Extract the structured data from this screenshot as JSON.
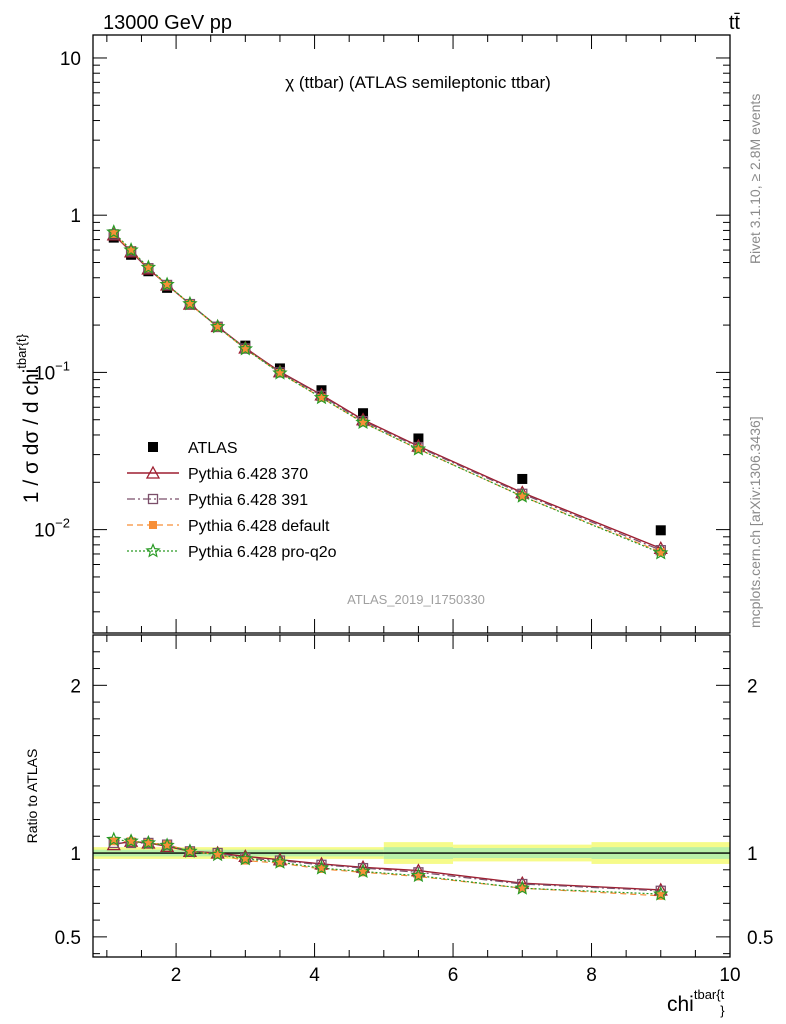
{
  "header": {
    "left": "13000 GeV pp",
    "right": "tt̄"
  },
  "side_labels": {
    "rivet": "Rivet 3.1.10, ≥ 2.8M events",
    "url": "mcplots.cern.ch [arXiv:1306.3436]"
  },
  "chart_data": [
    {
      "type": "scatter",
      "title": "χ (ttbar) (ATLAS semileptonic ttbar)",
      "watermark": "ATLAS_2019_I1750330",
      "ylabel": "1 / σ dσ / d chi",
      "ylabel_sup": "tbar{t}",
      "yscale": "log",
      "ylim": [
        0.0022,
        14
      ],
      "xlim": [
        0.8,
        10
      ],
      "y_ticks": [
        {
          "v": 10,
          "label": "10"
        },
        {
          "v": 1,
          "label": "1"
        },
        {
          "v": 0.1,
          "label": "10",
          "sup": "−1"
        },
        {
          "v": 0.01,
          "label": "10",
          "sup": "−2"
        }
      ],
      "x": [
        1.1,
        1.35,
        1.6,
        1.87,
        2.2,
        2.6,
        3.0,
        3.5,
        4.1,
        4.7,
        5.5,
        7.0,
        9.0
      ],
      "series": [
        {
          "name": "ATLAS",
          "marker": "square",
          "color": "#000000",
          "values": [
            0.72,
            0.56,
            0.44,
            0.345,
            0.27,
            0.195,
            0.148,
            0.106,
            0.077,
            0.055,
            0.038,
            0.021,
            0.0099
          ]
        },
        {
          "name": "Pythia 6.428 370",
          "marker": "triangle",
          "color": "#9e1f31",
          "line": "solid",
          "values": [
            0.75,
            0.585,
            0.455,
            0.36,
            0.272,
            0.196,
            0.143,
            0.101,
            0.072,
            0.05,
            0.034,
            0.0172,
            0.0076
          ]
        },
        {
          "name": "Pythia 6.428 391",
          "marker": "square-open",
          "color": "#7b4f6a",
          "line": "dashdot",
          "values": [
            0.755,
            0.59,
            0.46,
            0.36,
            0.272,
            0.195,
            0.142,
            0.1,
            0.071,
            0.049,
            0.0335,
            0.0169,
            0.0074
          ]
        },
        {
          "name": "Pythia 6.428 default",
          "marker": "square-filled",
          "color": "#f78f37",
          "line": "dashed",
          "values": [
            0.76,
            0.595,
            0.46,
            0.36,
            0.272,
            0.194,
            0.141,
            0.099,
            0.069,
            0.048,
            0.0325,
            0.0163,
            0.0072
          ]
        },
        {
          "name": "Pythia 6.428 pro-q2o",
          "marker": "star",
          "color": "#2a9b25",
          "line": "dotted",
          "values": [
            0.78,
            0.6,
            0.465,
            0.362,
            0.273,
            0.195,
            0.141,
            0.099,
            0.069,
            0.048,
            0.0325,
            0.0163,
            0.0071
          ]
        }
      ]
    },
    {
      "type": "line",
      "ylabel": "Ratio to ATLAS",
      "xlabel": "chi",
      "xlabel_sup": "tbar{t",
      "xlabel_sub": "}",
      "ylim": [
        0.38,
        2.3
      ],
      "xlim": [
        0.8,
        10
      ],
      "x_ticks": [
        2,
        4,
        6,
        8,
        10
      ],
      "y_ticks": [
        {
          "v": 2,
          "label": "2"
        },
        {
          "v": 1,
          "label": "1"
        },
        {
          "v": 0.5,
          "label": "0.5"
        }
      ],
      "x": [
        1.1,
        1.35,
        1.6,
        1.87,
        2.2,
        2.6,
        3.0,
        3.5,
        4.1,
        4.7,
        5.5,
        7.0,
        9.0
      ],
      "bands": [
        {
          "x0": 0.8,
          "x1": 5.0,
          "stat": 0.02,
          "total": 0.035
        },
        {
          "x0": 5.0,
          "x1": 6.0,
          "stat": 0.035,
          "total": 0.065
        },
        {
          "x0": 6.0,
          "x1": 8.0,
          "stat": 0.03,
          "total": 0.05
        },
        {
          "x0": 8.0,
          "x1": 10.0,
          "stat": 0.035,
          "total": 0.065
        }
      ],
      "series": [
        {
          "name": "Pythia 6.428 370",
          "values": [
            1.05,
            1.07,
            1.06,
            1.04,
            1.01,
            1.0,
            0.98,
            0.96,
            0.935,
            0.915,
            0.895,
            0.82,
            0.78
          ]
        },
        {
          "name": "Pythia 6.428 391",
          "values": [
            1.06,
            1.06,
            1.06,
            1.05,
            1.01,
            1.0,
            0.97,
            0.955,
            0.93,
            0.91,
            0.885,
            0.815,
            0.775
          ]
        },
        {
          "name": "Pythia 6.428 default",
          "values": [
            1.07,
            1.07,
            1.06,
            1.05,
            1.01,
            0.99,
            0.955,
            0.94,
            0.905,
            0.885,
            0.86,
            0.79,
            0.745
          ]
        },
        {
          "name": "Pythia 6.428 pro-q2o",
          "values": [
            1.08,
            1.07,
            1.06,
            1.045,
            1.01,
            0.99,
            0.965,
            0.945,
            0.91,
            0.89,
            0.865,
            0.79,
            0.755
          ]
        }
      ]
    }
  ]
}
